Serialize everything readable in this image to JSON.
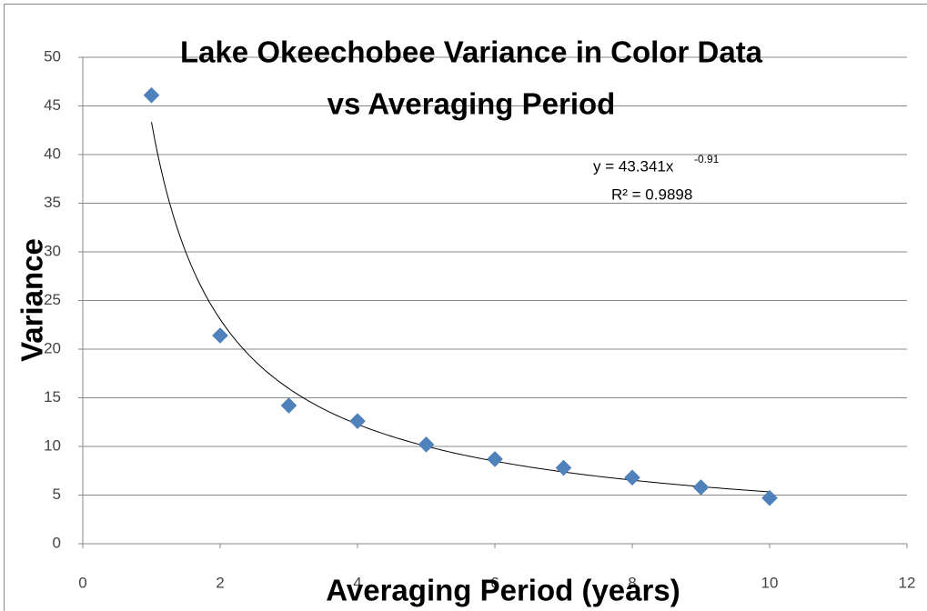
{
  "chart_data": {
    "type": "scatter",
    "title": [
      "Lake Okeechobee Variance in Color Data",
      "vs Averaging Period"
    ],
    "x_label": "Averaging Period (years)",
    "y_label": "Variance",
    "x": [
      1,
      2,
      3,
      4,
      5,
      6,
      7,
      8,
      9,
      10
    ],
    "values": [
      46.1,
      21.4,
      14.2,
      12.6,
      10.2,
      8.7,
      7.8,
      6.8,
      5.8,
      4.7
    ],
    "color": "#4f81bd",
    "xlim": [
      0,
      12
    ],
    "xticks": [
      0,
      2,
      4,
      6,
      8,
      10,
      12
    ],
    "ylim": [
      0,
      50
    ],
    "yticks": [
      0,
      5,
      10,
      15,
      20,
      25,
      30,
      35,
      40,
      45,
      50
    ],
    "grid": true,
    "trendline": {
      "coefficient": 43.341,
      "exponent": -0.91,
      "equation_label": "y = 43.341x",
      "exponent_label": "-0.91",
      "r_squared_label": "R² = 0.9898"
    }
  }
}
